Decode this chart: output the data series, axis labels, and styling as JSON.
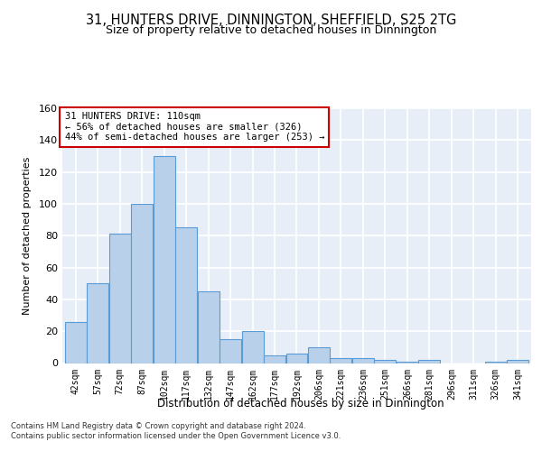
{
  "title1": "31, HUNTERS DRIVE, DINNINGTON, SHEFFIELD, S25 2TG",
  "title2": "Size of property relative to detached houses in Dinnington",
  "xlabel": "Distribution of detached houses by size in Dinnington",
  "ylabel": "Number of detached properties",
  "bar_color": "#b8d0ea",
  "bar_edge_color": "#5b9bd5",
  "background_color": "#e8eef8",
  "grid_color": "#ffffff",
  "categories": [
    "42sqm",
    "57sqm",
    "72sqm",
    "87sqm",
    "102sqm",
    "117sqm",
    "132sqm",
    "147sqm",
    "162sqm",
    "177sqm",
    "192sqm",
    "206sqm",
    "221sqm",
    "236sqm",
    "251sqm",
    "266sqm",
    "281sqm",
    "296sqm",
    "311sqm",
    "326sqm",
    "341sqm"
  ],
  "bar_heights": [
    26,
    50,
    81,
    100,
    130,
    85,
    45,
    15,
    20,
    5,
    6,
    10,
    3,
    3,
    2,
    1,
    2,
    0,
    0,
    1,
    2
  ],
  "ylim": [
    0,
    160
  ],
  "yticks": [
    0,
    20,
    40,
    60,
    80,
    100,
    120,
    140,
    160
  ],
  "annotation_line1": "31 HUNTERS DRIVE: 110sqm",
  "annotation_line2": "← 56% of detached houses are smaller (326)",
  "annotation_line3": "44% of semi-detached houses are larger (253) →",
  "annotation_box_color": "#ffffff",
  "annotation_box_edge": "#cc0000",
  "footnote": "Contains HM Land Registry data © Crown copyright and database right 2024.\nContains public sector information licensed under the Open Government Licence v3.0."
}
